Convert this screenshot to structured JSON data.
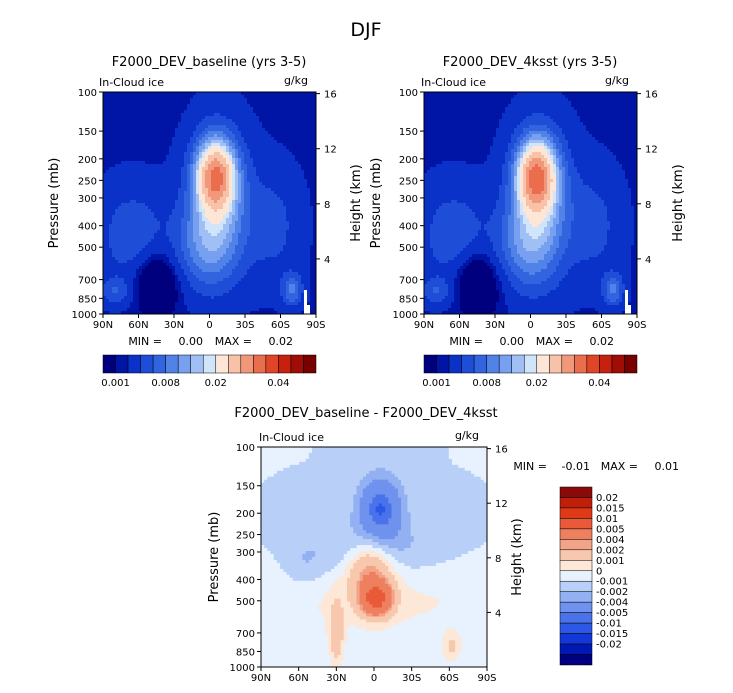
{
  "title": "DJF",
  "plots": [
    {
      "id": "baseline",
      "title": "F2000_DEV_baseline (yrs 3-5)",
      "variable": "In-Cloud ice",
      "units": "g/kg",
      "ylabel": "Pressure (mb)",
      "y2label": "Height (km)",
      "x_ticks": [
        "90N",
        "60N",
        "30N",
        "0",
        "30S",
        "60S",
        "90S"
      ],
      "y_ticks": [
        "100",
        "150",
        "200",
        "250",
        "300",
        "400",
        "500",
        "700",
        "850",
        "1000"
      ],
      "y2_ticks": [
        "16",
        "12",
        "8",
        "4"
      ],
      "min_label": "MIN =",
      "min_value": "0.00",
      "max_label": "MAX =",
      "max_value": "0.02",
      "peak": 0.022
    },
    {
      "id": "4ksst",
      "title": "F2000_DEV_4ksst (yrs 3-5)",
      "variable": "In-Cloud ice",
      "units": "g/kg",
      "ylabel": "Pressure (mb)",
      "y2label": "Height (km)",
      "x_ticks": [
        "90N",
        "60N",
        "30N",
        "0",
        "30S",
        "60S",
        "90S"
      ],
      "y_ticks": [
        "100",
        "150",
        "200",
        "250",
        "300",
        "400",
        "500",
        "700",
        "850",
        "1000"
      ],
      "y2_ticks": [
        "16",
        "12",
        "8",
        "4"
      ],
      "min_label": "MIN =",
      "min_value": "0.00",
      "max_label": "MAX =",
      "max_value": "0.02",
      "peak": 0.023
    },
    {
      "id": "difference",
      "title": "F2000_DEV_baseline - F2000_DEV_4ksst",
      "variable": "In-Cloud ice",
      "units": "g/kg",
      "ylabel": "Pressure (mb)",
      "y2label": "Height (km)",
      "x_ticks": [
        "90N",
        "60N",
        "30N",
        "0",
        "30S",
        "60S",
        "90S"
      ],
      "y_ticks": [
        "100",
        "150",
        "200",
        "250",
        "300",
        "400",
        "500",
        "700",
        "850",
        "1000"
      ],
      "y2_ticks": [
        "16",
        "12",
        "8",
        "4"
      ],
      "min_label": "MIN =",
      "min_value": "-0.01",
      "max_label": "MAX =",
      "max_value": "0.01"
    }
  ],
  "colorbar_abs": {
    "colors": [
      "#00007e",
      "#0014a6",
      "#0a32c8",
      "#1e4ed8",
      "#3264e0",
      "#5082e8",
      "#78a0f0",
      "#a0c0f5",
      "#d0e4fa",
      "#fde6d6",
      "#f8c2a8",
      "#f2987a",
      "#ea6e4e",
      "#e04626",
      "#c8200e",
      "#a00c06",
      "#780000"
    ],
    "levels": [
      0.001,
      0.002,
      0.004,
      0.006,
      0.008,
      0.01,
      0.012,
      0.014,
      0.016,
      0.02,
      0.024,
      0.028,
      0.032,
      0.036,
      0.04,
      0.045
    ],
    "tick_labels": [
      "0.001",
      "0.008",
      "0.02",
      "0.04"
    ]
  },
  "colorbar_diff": {
    "colors": [
      "#000080",
      "#0018b4",
      "#1438d8",
      "#2c58e6",
      "#4a72ea",
      "#6e92ee",
      "#92b0f2",
      "#b8d0f8",
      "#e8f2fe",
      "#fde8d8",
      "#f8c8ae",
      "#f2a488",
      "#ee8060",
      "#e85a38",
      "#de3a1a",
      "#c0200a",
      "#8a0a0a"
    ],
    "levels": [
      -0.02,
      -0.015,
      -0.01,
      -0.005,
      -0.004,
      -0.002,
      -0.001,
      0,
      0.001,
      0.002,
      0.004,
      0.005,
      0.01,
      0.015,
      0.02
    ],
    "tick_labels": [
      "0.02",
      "0.015",
      "0.01",
      "0.005",
      "0.004",
      "0.002",
      "0.001",
      "0",
      "-0.001",
      "-0.002",
      "-0.004",
      "-0.005",
      "-0.01",
      "-0.015",
      "-0.02"
    ]
  }
}
